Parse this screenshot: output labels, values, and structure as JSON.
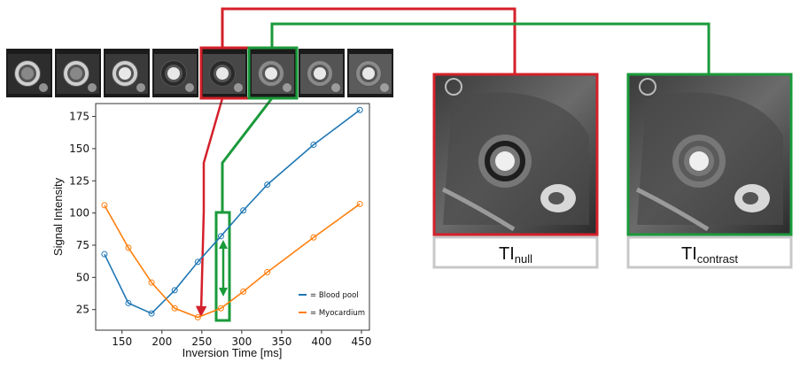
{
  "chart_data": {
    "type": "line",
    "xlabel": "Inversion Time [ms]",
    "ylabel": "Signal Intensity",
    "xlim": [
      117,
      460
    ],
    "ylim": [
      9,
      185
    ],
    "xticks": [
      150,
      200,
      250,
      300,
      350,
      400,
      450
    ],
    "yticks": [
      25,
      50,
      75,
      100,
      125,
      150,
      175
    ],
    "grid": false,
    "legend_position": "bottom-right",
    "series": [
      {
        "name": "= Blood pool",
        "color": "#1f77b4",
        "x": [
          128,
          158,
          187,
          216,
          245,
          274,
          302,
          332,
          390,
          448
        ],
        "y": [
          68,
          30,
          22,
          40,
          62,
          82,
          102,
          122,
          153,
          180
        ]
      },
      {
        "name": "= Myocardium",
        "color": "#ff7f0e",
        "x": [
          128,
          158,
          187,
          216,
          245,
          274,
          302,
          332,
          390,
          448
        ],
        "y": [
          106,
          73,
          46,
          26,
          19,
          26,
          39,
          54,
          81,
          107
        ]
      }
    ]
  },
  "panels": {
    "null_label_main": "TI",
    "null_label_sub": "null",
    "contrast_label_main": "TI",
    "contrast_label_sub": "contrast"
  },
  "colors": {
    "null": "#d4202a",
    "contrast": "#1a9a3a",
    "panel_border": "#c8c8c8"
  },
  "thumbnails": {
    "count": 8,
    "highlight_null_index": 4,
    "highlight_contrast_index": 5
  }
}
